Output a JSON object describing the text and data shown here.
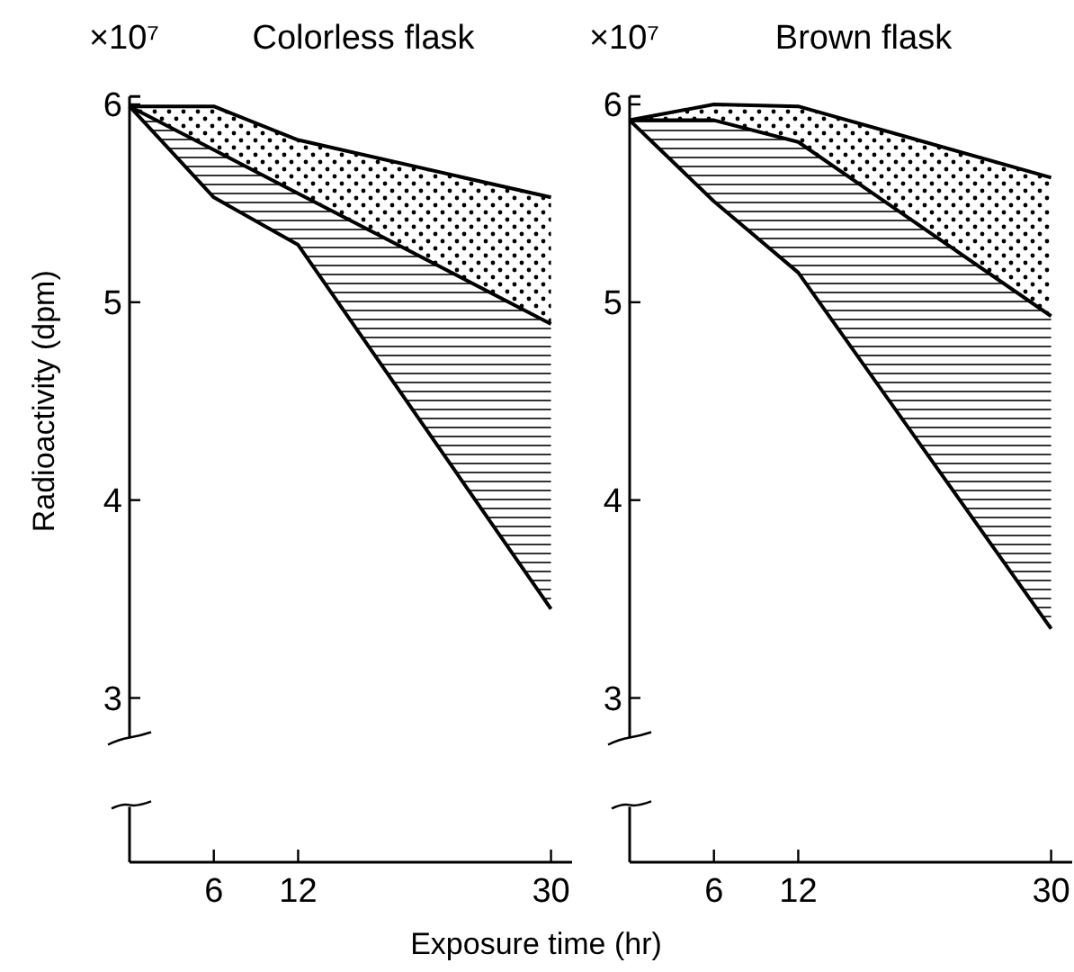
{
  "chart_data": [
    {
      "type": "line",
      "title": "Colorless flask",
      "ylabel": "Radioactivity (dpm)",
      "xlabel": "Exposure time (hr)",
      "annotations": [
        "×10⁷"
      ],
      "x": [
        0,
        6,
        12,
        30
      ],
      "xlim": [
        0,
        31.5
      ],
      "xticks": [
        6,
        12,
        30
      ],
      "ylim": [
        2.17,
        6.04
      ],
      "yticks": [
        3,
        4,
        5,
        6
      ],
      "grid": false,
      "series": [
        {
          "color": "#000000",
          "values": [
            5.99,
            5.99,
            5.82,
            5.53
          ]
        },
        {
          "color": "#000000",
          "values": [
            5.99,
            5.77,
            5.55,
            4.89
          ]
        },
        {
          "color": "#000000",
          "values": [
            5.99,
            5.53,
            5.29,
            3.45
          ]
        }
      ]
    },
    {
      "type": "line",
      "title": "Brown flask",
      "annotations": [
        "×10⁷"
      ],
      "x": [
        0,
        6,
        12,
        30
      ],
      "xlim": [
        0,
        31.5
      ],
      "xticks": [
        6,
        12,
        30
      ],
      "ylim": [
        2.17,
        6.04
      ],
      "yticks": [
        3,
        4,
        5,
        6
      ],
      "grid": false,
      "series": [
        {
          "color": "#000000",
          "values": [
            5.92,
            6.0,
            5.99,
            5.63
          ]
        },
        {
          "color": "#000000",
          "values": [
            5.92,
            5.92,
            5.81,
            4.93
          ]
        },
        {
          "color": "#000000",
          "values": [
            5.92,
            5.51,
            5.15,
            3.35
          ]
        }
      ]
    }
  ]
}
